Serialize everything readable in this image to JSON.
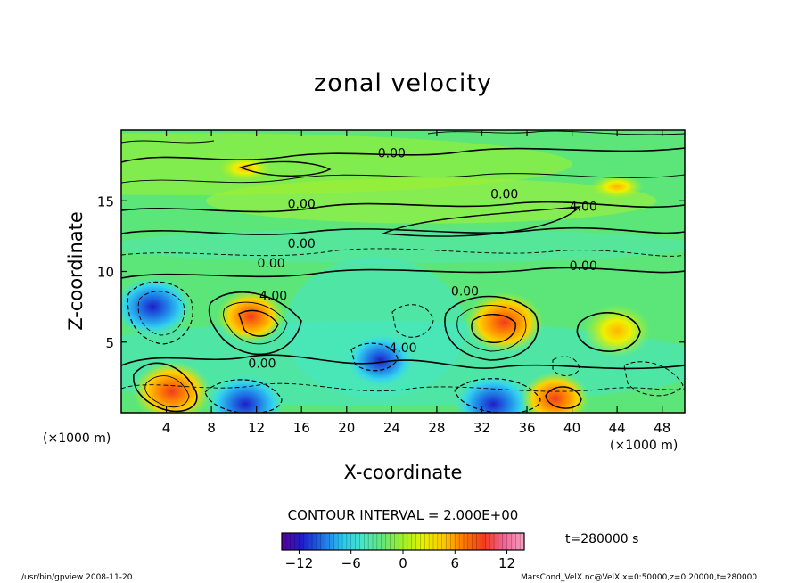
{
  "chart_data": {
    "type": "heatmap",
    "title": "zonal velocity",
    "xlabel": "X-coordinate",
    "ylabel": "Z-coordinate",
    "x_unit_left": "(×1000 m)",
    "x_unit_right": "(×1000 m)",
    "xlim": [
      0,
      50
    ],
    "ylim": [
      0,
      20
    ],
    "x_ticks": [
      4,
      8,
      12,
      16,
      20,
      24,
      28,
      32,
      36,
      40,
      44,
      48
    ],
    "y_ticks": [
      5,
      10,
      15
    ],
    "contour_interval_label": "CONTOUR INTERVAL = 2.000E+00",
    "contour_interval": 2,
    "time_label": "t=280000 s",
    "colorbar": {
      "min": -14,
      "max": 14,
      "ticks": [
        -12,
        -6,
        0,
        6,
        12
      ],
      "colors": [
        "#5a00a0",
        "#1e1ec8",
        "#1e6ee6",
        "#28c8f0",
        "#46e6c8",
        "#64e678",
        "#a0f028",
        "#e6f000",
        "#ffc800",
        "#ff7800",
        "#f03c1e",
        "#f06496",
        "#f8a0c0"
      ]
    },
    "contour_labels": [
      {
        "text": "0.00",
        "x": 24,
        "y": 18.4
      },
      {
        "text": "0.00",
        "x": 34,
        "y": 15.5
      },
      {
        "text": "0.00",
        "x": 16,
        "y": 14.8
      },
      {
        "text": "4.00",
        "x": 41,
        "y": 14.6
      },
      {
        "text": "0.00",
        "x": 16,
        "y": 12.0
      },
      {
        "text": "0.00",
        "x": 13.3,
        "y": 10.6
      },
      {
        "text": "0.00",
        "x": 41,
        "y": 10.4
      },
      {
        "text": "4.00",
        "x": 13.5,
        "y": 8.3
      },
      {
        "text": "0.00",
        "x": 30.5,
        "y": 8.6
      },
      {
        "text": "4.00",
        "x": 25,
        "y": 4.6
      },
      {
        "text": "0.00",
        "x": 12.5,
        "y": 3.5
      }
    ],
    "extrema": [
      {
        "kind": "min",
        "x": 2.8,
        "y": 7.5,
        "value": -10
      },
      {
        "kind": "max",
        "x": 11.5,
        "y": 6.8,
        "value": 8
      },
      {
        "kind": "max",
        "x": 34,
        "y": 6.4,
        "value": 10
      },
      {
        "kind": "max",
        "x": 44,
        "y": 5.8,
        "value": 6
      },
      {
        "kind": "min",
        "x": 23,
        "y": 3.7,
        "value": -8
      },
      {
        "kind": "max",
        "x": 4.5,
        "y": 1.5,
        "value": 10
      },
      {
        "kind": "min",
        "x": 11,
        "y": 0.6,
        "value": -10
      },
      {
        "kind": "min",
        "x": 33,
        "y": 0.6,
        "value": -12
      },
      {
        "kind": "max",
        "x": 38.5,
        "y": 1.0,
        "value": 8
      },
      {
        "kind": "max",
        "x": 44,
        "y": 16.0,
        "value": 4
      },
      {
        "kind": "max",
        "x": 11,
        "y": 17.3,
        "value": 4
      }
    ]
  },
  "footer": {
    "left": "/usr/bin/gpview  2008-11-20",
    "right": "MarsCond_VelX.nc@VelX,x=0:50000,z=0:20000,t=280000"
  }
}
